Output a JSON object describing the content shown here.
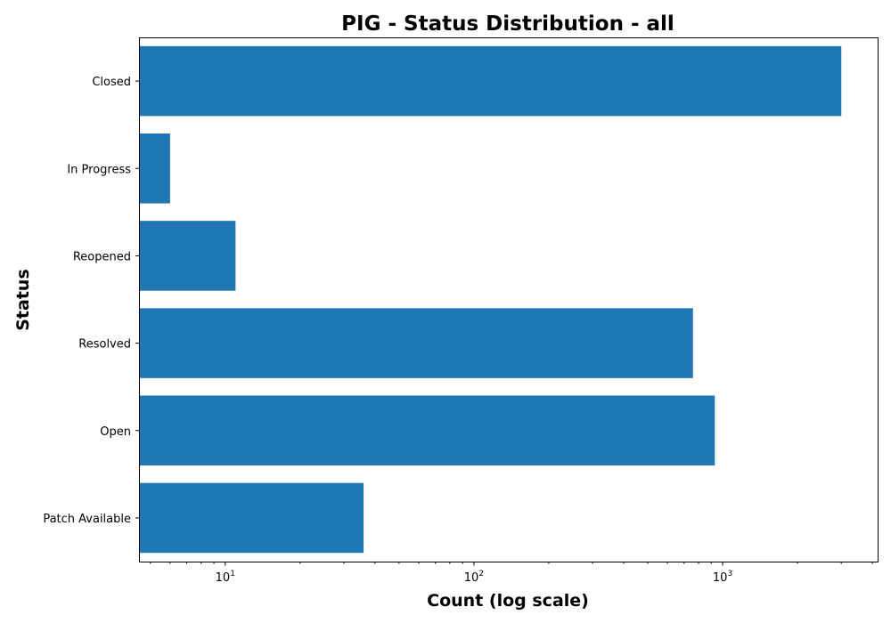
{
  "chart_data": {
    "type": "bar",
    "orientation": "horizontal",
    "title": "PIG - Status Distribution - all",
    "xlabel": "Count (log scale)",
    "ylabel": "Status",
    "x_scale": "log",
    "xlim": [
      4.5,
      4200
    ],
    "categories": [
      "Closed",
      "In Progress",
      "Reopened",
      "Resolved",
      "Open",
      "Patch Available"
    ],
    "values": [
      3000,
      6,
      11,
      760,
      930,
      36
    ],
    "x_ticks": [
      {
        "value": 10,
        "base": "10",
        "exp": "1"
      },
      {
        "value": 100,
        "base": "10",
        "exp": "2"
      },
      {
        "value": 1000,
        "base": "10",
        "exp": "3"
      }
    ],
    "bar_color": "#1f77b4",
    "grid": false,
    "legend": "none"
  }
}
